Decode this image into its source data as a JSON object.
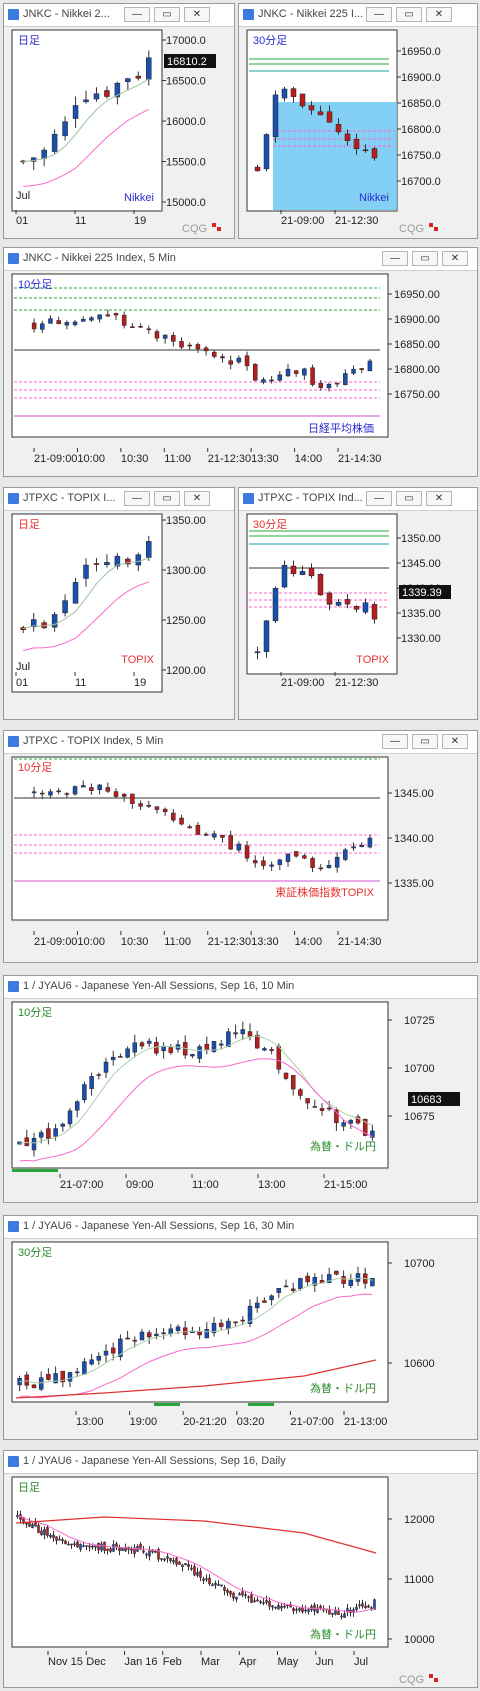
{
  "colors": {
    "up": "#1a4fb0",
    "down": "#b81e1e",
    "green": "#26a63a",
    "ma": "#ff66cc",
    "grid": "#cccccc",
    "panelbg": "#ffffff",
    "highlight": "#6fc7f2",
    "topix_label": "#e8312e",
    "nikkei_label": "#2a2ad0",
    "yen_label": "#2a8a2a"
  },
  "windows": [
    {
      "id": "w1",
      "title": "JNKC - Nikkei 2...",
      "interval_label": "日足",
      "symbol_label": "Nikkei",
      "price": "16810.2",
      "y_ticks": [
        "17000.0",
        "16500.0",
        "16000.0",
        "15500.0",
        "15000.0"
      ],
      "x_ticks": [
        "01",
        "11",
        "19"
      ],
      "extra_label": "Jul",
      "logo": "CQG"
    },
    {
      "id": "w2",
      "title": "JNKC - Nikkei 225 I...",
      "interval_label": "30分足",
      "symbol_label": "Nikkei",
      "y_ticks": [
        "16950.0",
        "16900.0",
        "16850.0",
        "16800.0",
        "16750.0",
        "16700.0"
      ],
      "x_ticks": [
        "21-09:00",
        "21-12:30"
      ],
      "logo": "CQG"
    },
    {
      "id": "w3",
      "title": "JNKC - Nikkei 225 Index, 5 Min",
      "interval_label": "10分足",
      "symbol_label": "日経平均株価",
      "y_ticks": [
        "16950.00",
        "16900.00",
        "16850.00",
        "16800.00",
        "16750.00"
      ],
      "x_ticks": [
        "21-09:00",
        "10:00",
        "10:30",
        "11:00",
        "21-12:30",
        "13:30",
        "14:00",
        "21-14:30"
      ]
    },
    {
      "id": "w4",
      "title": "JTPXC - TOPIX I...",
      "interval_label": "日足",
      "symbol_label": "TOPIX",
      "y_ticks": [
        "1350.00",
        "1300.00",
        "1250.00",
        "1200.00"
      ],
      "x_ticks": [
        "01",
        "11",
        "19"
      ],
      "extra_label": "Jul"
    },
    {
      "id": "w5",
      "title": "JTPXC - TOPIX Ind...",
      "interval_label": "30分足",
      "symbol_label": "TOPIX",
      "price": "1339.39",
      "y_ticks": [
        "1350.00",
        "1345.00",
        "1340.00",
        "1335.00",
        "1330.00"
      ],
      "x_ticks": [
        "21-09:00",
        "21-12:30"
      ]
    },
    {
      "id": "w6",
      "title": "JTPXC - TOPIX Index, 5 Min",
      "interval_label": "10分足",
      "symbol_label": "東証株価指数TOPIX",
      "y_ticks": [
        "1345.00",
        "1340.00",
        "1335.00"
      ],
      "x_ticks": [
        "21-09:00",
        "10:00",
        "10:30",
        "11:00",
        "21-12:30",
        "13:30",
        "14:00",
        "21-14:30"
      ]
    },
    {
      "id": "w7",
      "title": "1 / JYAU6 - Japanese Yen-All Sessions, Sep 16, 10 Min",
      "interval_label": "10分足",
      "symbol_label": "為替・ドル円",
      "price": "10683",
      "y_ticks": [
        "10725",
        "10700",
        "10675"
      ],
      "x_ticks": [
        "21-07:00",
        "09:00",
        "11:00",
        "13:00",
        "21-15:00"
      ]
    },
    {
      "id": "w8",
      "title": "1 / JYAU6 - Japanese Yen-All Sessions, Sep 16, 30 Min",
      "interval_label": "30分足",
      "symbol_label": "為替・ドル円",
      "y_ticks": [
        "10700",
        "10600"
      ],
      "x_ticks": [
        "13:00",
        "19:00",
        "20-21:20",
        "03:20",
        "21-07:00",
        "21-13:00"
      ]
    },
    {
      "id": "w9",
      "title": "1 / JYAU6 - Japanese Yen-All Sessions, Sep 16, Daily",
      "interval_label": "日足",
      "symbol_label": "為替・ドル円",
      "y_ticks": [
        "12000",
        "11000",
        "10000"
      ],
      "x_ticks": [
        "Nov 15",
        "Dec",
        "Jan 16",
        "Feb",
        "Mar",
        "Apr",
        "May",
        "Jun",
        "Jul"
      ],
      "logo": "CQG"
    }
  ]
}
